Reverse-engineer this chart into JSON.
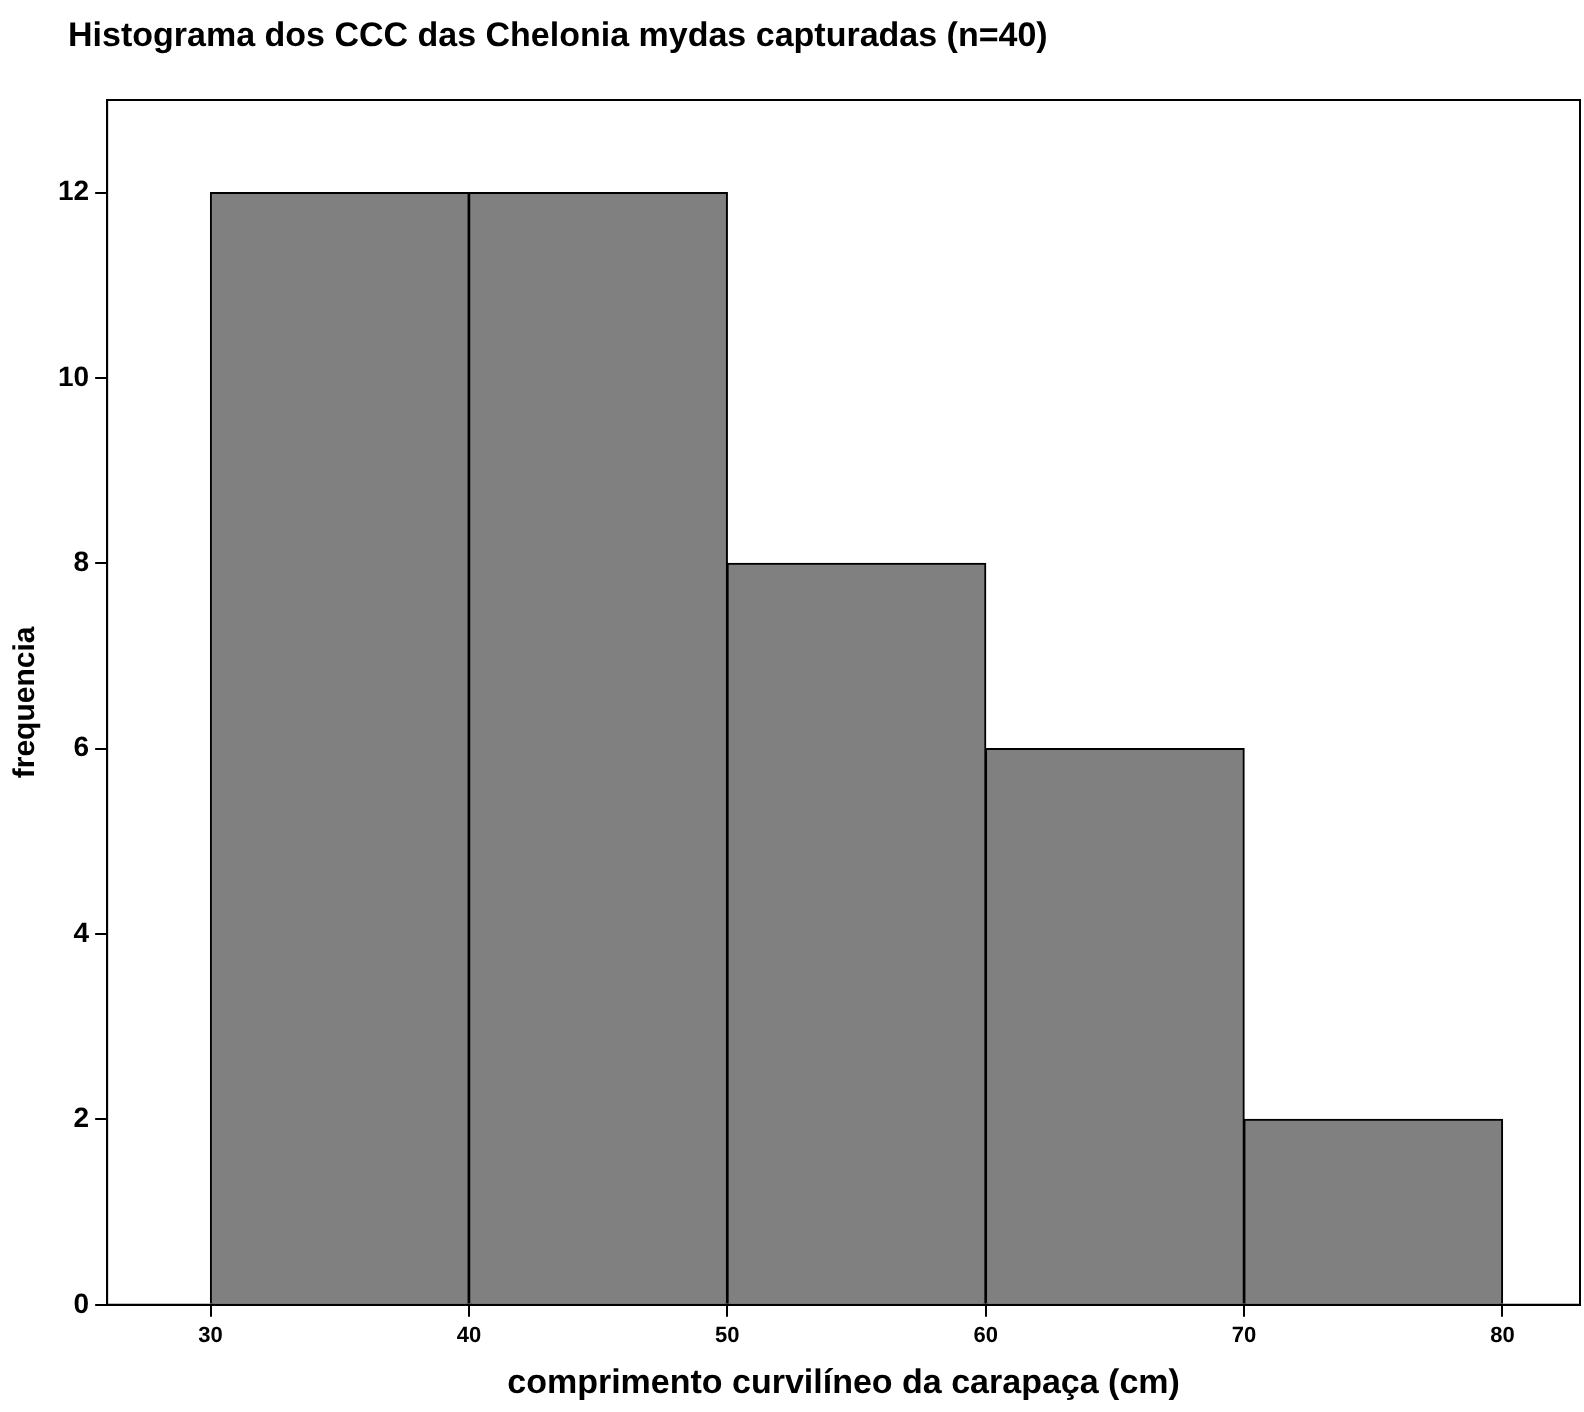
{
  "chart_data": {
    "type": "histogram",
    "title": "Histograma dos CCC das Chelonia mydas capturadas (n=40)",
    "xlabel": "comprimento curvilíneo da carapaça (cm)",
    "ylabel": "frequencia",
    "bins": [
      30,
      40,
      50,
      60,
      70,
      80
    ],
    "values": [
      12,
      12,
      8,
      6,
      2
    ],
    "color": "#808080",
    "xlim": [
      26,
      83
    ],
    "xticks": [
      30,
      40,
      50,
      60,
      70,
      80
    ],
    "ylim": [
      0,
      13
    ],
    "yticks": [
      0,
      2,
      4,
      6,
      8,
      10,
      12
    ],
    "grid": false,
    "legend": false
  }
}
